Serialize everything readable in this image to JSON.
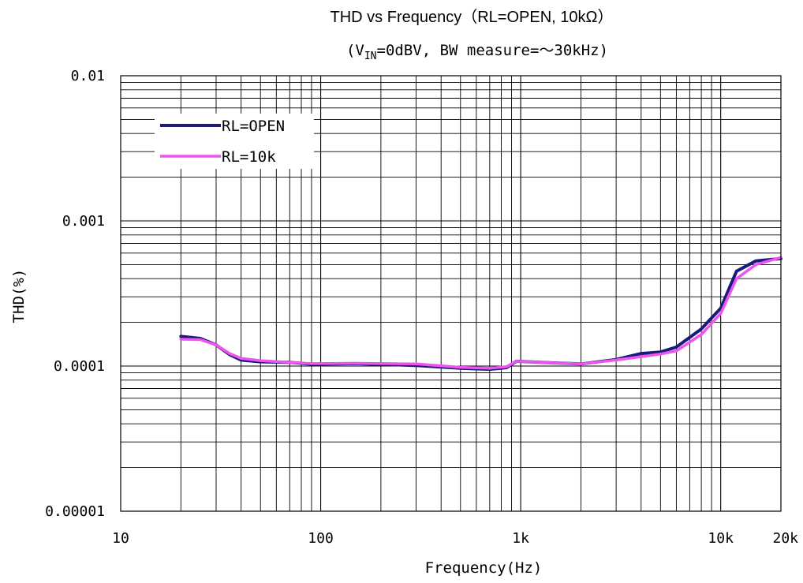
{
  "chart_data": {
    "type": "line",
    "title": "THD vs Frequency（RL=OPEN, 10kΩ）",
    "subtitle": {
      "prefix": "(V",
      "subscript": "IN",
      "suffix": "=0dBV, BW measure=～30kHz)"
    },
    "xlabel": "Frequency(Hz)",
    "ylabel": "THD(%)",
    "x_scale": "log",
    "y_scale": "log",
    "xlim": [
      10,
      20000
    ],
    "ylim": [
      1e-05,
      0.01
    ],
    "x_ticks": [
      {
        "value": 10,
        "label": "10"
      },
      {
        "value": 100,
        "label": "100"
      },
      {
        "value": 1000,
        "label": "1k"
      },
      {
        "value": 10000,
        "label": "10k"
      },
      {
        "value": 20000,
        "label": "20k"
      }
    ],
    "y_ticks": [
      {
        "value": 0.01,
        "label": "0.01"
      },
      {
        "value": 0.001,
        "label": "0.001"
      },
      {
        "value": 0.0001,
        "label": "0.0001"
      },
      {
        "value": 1e-05,
        "label": "0.00001"
      }
    ],
    "grid": true,
    "legend": "top-left",
    "series": [
      {
        "name": "RL=OPEN",
        "color": "#1a1a7a",
        "x": [
          20,
          25,
          30,
          35,
          40,
          50,
          70,
          90,
          150,
          300,
          500,
          700,
          850,
          950,
          1500,
          2000,
          3000,
          4000,
          5000,
          6000,
          8000,
          10000,
          12000,
          15000,
          20000
        ],
        "y": [
          0.00016,
          0.000155,
          0.00014,
          0.00012,
          0.00011,
          0.000107,
          0.000106,
          0.000103,
          0.000104,
          0.000101,
          9.65e-05,
          9.5e-05,
          9.75e-05,
          0.000108,
          0.000105,
          0.0001035,
          0.000111,
          0.000122,
          0.000125,
          0.000135,
          0.00018,
          0.00025,
          0.00045,
          0.00053,
          0.00055
        ]
      },
      {
        "name": "RL=10k",
        "color": "#ee55ee",
        "x": [
          20,
          25,
          30,
          35,
          40,
          50,
          70,
          90,
          150,
          300,
          500,
          700,
          850,
          950,
          1500,
          2000,
          3000,
          4000,
          5000,
          6000,
          8000,
          10000,
          12000,
          15000,
          20000
        ],
        "y": [
          0.000153,
          0.000152,
          0.00014,
          0.000122,
          0.000113,
          0.000109,
          0.000106,
          0.000104,
          0.0001045,
          0.0001035,
          9.8e-05,
          9.65e-05,
          9.9e-05,
          0.000108,
          0.000105,
          0.0001035,
          0.00011,
          0.000116,
          0.000121,
          0.000127,
          0.000165,
          0.00023,
          0.0004,
          0.0005,
          0.00056
        ]
      }
    ]
  }
}
